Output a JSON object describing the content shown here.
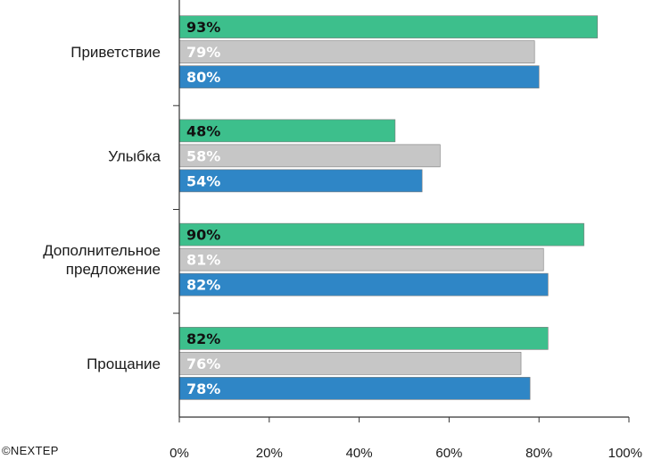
{
  "copyright": "©NEXTEP",
  "chart_data": {
    "type": "bar",
    "orientation": "horizontal",
    "categories": [
      [
        "Приветствие"
      ],
      [
        "Улыбка"
      ],
      [
        "Дополнительное",
        "предложение"
      ],
      [
        "Прощание"
      ]
    ],
    "series": [
      {
        "values": [
          93,
          48,
          90,
          82
        ],
        "labels": [
          "93%",
          "48%",
          "90%",
          "82%"
        ],
        "color": "#3dbf8c",
        "label_color": "#111111"
      },
      {
        "values": [
          79,
          58,
          81,
          76
        ],
        "labels": [
          "79%",
          "58%",
          "81%",
          "76%"
        ],
        "color": "#c6c6c6",
        "label_color": "#ffffff"
      },
      {
        "values": [
          80,
          54,
          82,
          78
        ],
        "labels": [
          "80%",
          "54%",
          "82%",
          "78%"
        ],
        "color": "#2f86c6",
        "label_color": "#ffffff"
      }
    ],
    "xlim": [
      0,
      100
    ],
    "xticks": [
      0,
      20,
      40,
      60,
      80,
      100
    ],
    "xtick_labels": [
      "0%",
      "20%",
      "40%",
      "60%",
      "80%",
      "100%"
    ],
    "grid": false,
    "legend": "none"
  }
}
